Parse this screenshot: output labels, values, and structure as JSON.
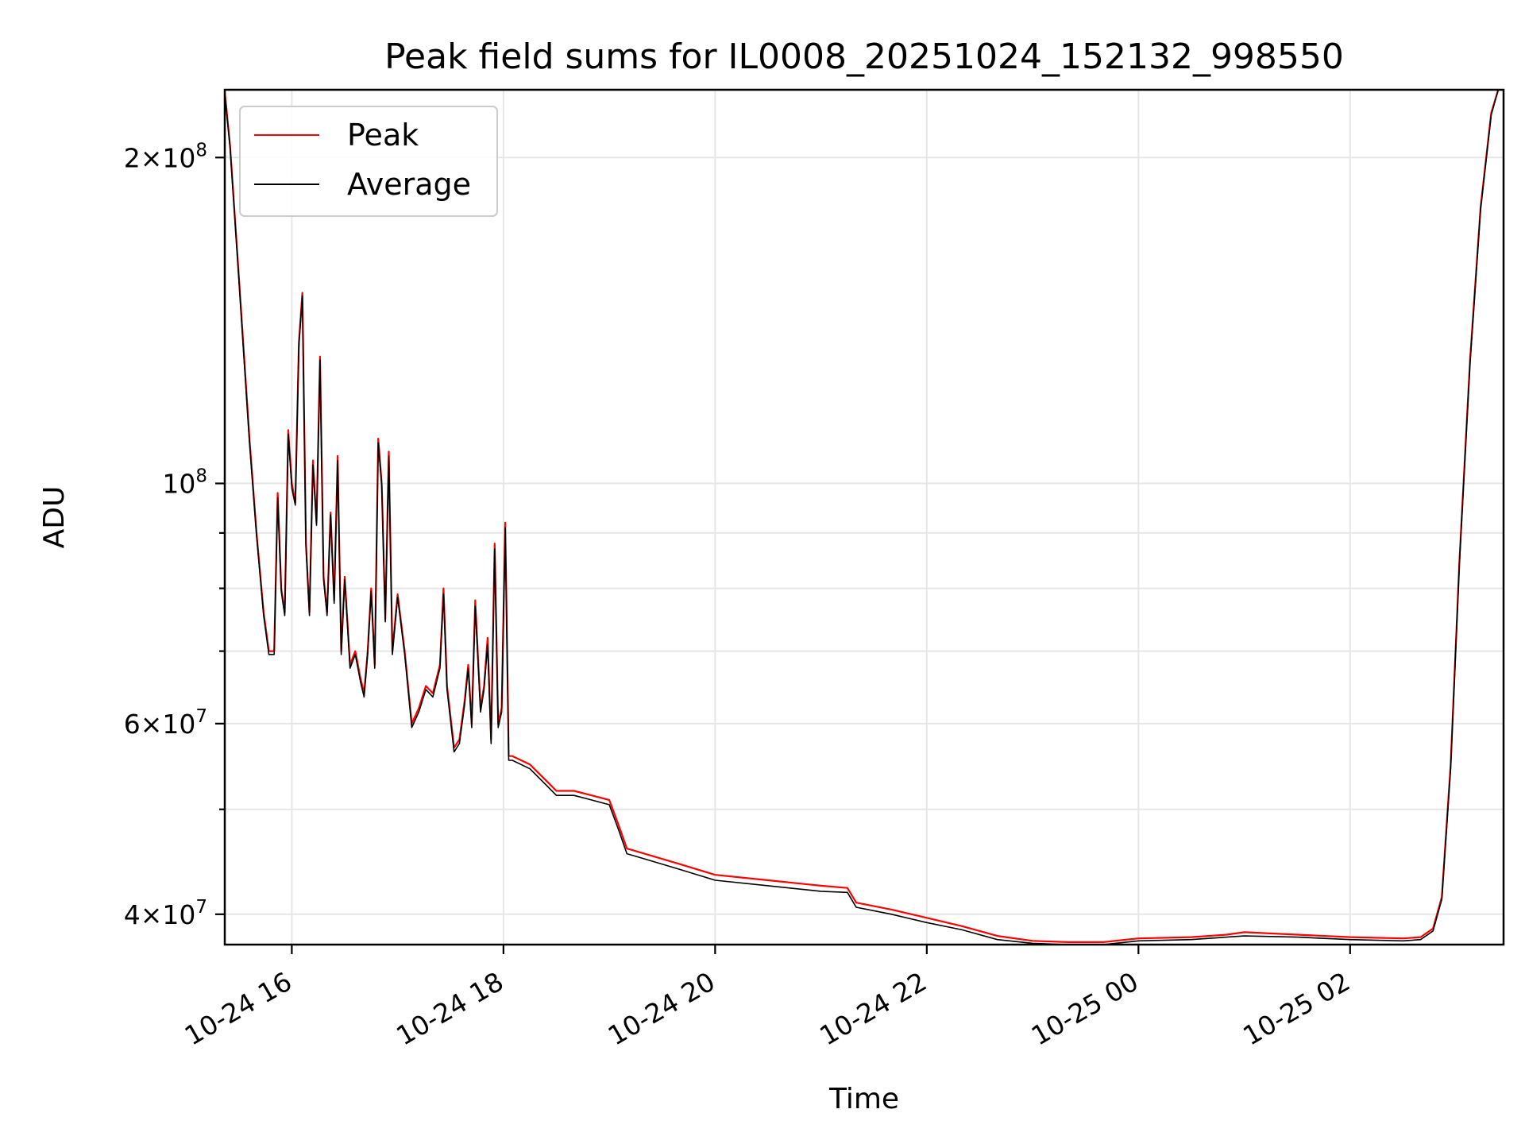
{
  "chart_data": {
    "type": "line",
    "title": "Peak field sums for IL0008_20251024_152132_998550",
    "xlabel": "Time",
    "ylabel": "ADU",
    "yscale": "log",
    "grid": true,
    "legend_position": "top-left",
    "xlim": [
      "2025-10-24 15:22",
      "2025-10-25 03:27"
    ],
    "ylim": [
      37500000,
      231000000
    ],
    "x_ticks": [
      {
        "value": "2025-10-24 16:00",
        "label": "10-24 16"
      },
      {
        "value": "2025-10-24 18:00",
        "label": "10-24 18"
      },
      {
        "value": "2025-10-24 20:00",
        "label": "10-24 20"
      },
      {
        "value": "2025-10-24 22:00",
        "label": "10-24 22"
      },
      {
        "value": "2025-10-25 00:00",
        "label": "10-25 00"
      },
      {
        "value": "2025-10-25 02:00",
        "label": "10-25 02"
      }
    ],
    "y_ticks": [
      {
        "value": 40000000,
        "base": "4",
        "exp": "7"
      },
      {
        "value": 60000000,
        "base": "6",
        "exp": "7"
      },
      {
        "value": 100000000,
        "base": "",
        "exp": "8"
      },
      {
        "value": 200000000,
        "base": "2",
        "exp": "8"
      }
    ],
    "y_minor_ticks": [
      50000000,
      70000000,
      80000000,
      90000000
    ],
    "series": [
      {
        "name": "Peak",
        "color": "#ff0000",
        "x": [
          "2025-10-24 15:22",
          "2025-10-24 15:25",
          "2025-10-24 15:30",
          "2025-10-24 15:36",
          "2025-10-24 15:40",
          "2025-10-24 15:44",
          "2025-10-24 15:47",
          "2025-10-24 15:50",
          "2025-10-24 15:52",
          "2025-10-24 15:54",
          "2025-10-24 15:56",
          "2025-10-24 15:58",
          "2025-10-24 16:00",
          "2025-10-24 16:02",
          "2025-10-24 16:04",
          "2025-10-24 16:06",
          "2025-10-24 16:08",
          "2025-10-24 16:10",
          "2025-10-24 16:12",
          "2025-10-24 16:14",
          "2025-10-24 16:16",
          "2025-10-24 16:18",
          "2025-10-24 16:20",
          "2025-10-24 16:22",
          "2025-10-24 16:24",
          "2025-10-24 16:26",
          "2025-10-24 16:28",
          "2025-10-24 16:30",
          "2025-10-24 16:33",
          "2025-10-24 16:36",
          "2025-10-24 16:39",
          "2025-10-24 16:41",
          "2025-10-24 16:43",
          "2025-10-24 16:45",
          "2025-10-24 16:47",
          "2025-10-24 16:49",
          "2025-10-24 16:51",
          "2025-10-24 16:53",
          "2025-10-24 16:55",
          "2025-10-24 16:57",
          "2025-10-24 17:00",
          "2025-10-24 17:04",
          "2025-10-24 17:08",
          "2025-10-24 17:12",
          "2025-10-24 17:16",
          "2025-10-24 17:20",
          "2025-10-24 17:24",
          "2025-10-24 17:26",
          "2025-10-24 17:28",
          "2025-10-24 17:32",
          "2025-10-24 17:35",
          "2025-10-24 17:38",
          "2025-10-24 17:40",
          "2025-10-24 17:42",
          "2025-10-24 17:44",
          "2025-10-24 17:47",
          "2025-10-24 17:49",
          "2025-10-24 17:51",
          "2025-10-24 17:53",
          "2025-10-24 17:55",
          "2025-10-24 17:57",
          "2025-10-24 17:59",
          "2025-10-24 18:01",
          "2025-10-24 18:03",
          "2025-10-24 18:05",
          "2025-10-24 18:15",
          "2025-10-24 18:25",
          "2025-10-24 18:30",
          "2025-10-24 18:40",
          "2025-10-24 18:50",
          "2025-10-24 19:00",
          "2025-10-24 19:05",
          "2025-10-24 19:10",
          "2025-10-24 19:20",
          "2025-10-24 19:40",
          "2025-10-24 20:00",
          "2025-10-24 20:30",
          "2025-10-24 21:00",
          "2025-10-24 21:15",
          "2025-10-24 21:20",
          "2025-10-24 21:40",
          "2025-10-24 22:00",
          "2025-10-24 22:20",
          "2025-10-24 22:40",
          "2025-10-24 23:00",
          "2025-10-24 23:20",
          "2025-10-24 23:40",
          "2025-10-25 00:00",
          "2025-10-25 00:30",
          "2025-10-25 00:50",
          "2025-10-25 01:00",
          "2025-10-25 01:30",
          "2025-10-25 02:00",
          "2025-10-25 02:30",
          "2025-10-25 02:40",
          "2025-10-25 02:47",
          "2025-10-25 02:52",
          "2025-10-25 02:57",
          "2025-10-25 03:02",
          "2025-10-25 03:08",
          "2025-10-25 03:14",
          "2025-10-25 03:20",
          "2025-10-25 03:24",
          "2025-10-25 03:27"
        ],
        "y": [
          230000000,
          205000000,
          155000000,
          110000000,
          90000000,
          76000000,
          70000000,
          70000000,
          98000000,
          80000000,
          76000000,
          112000000,
          100000000,
          96000000,
          135000000,
          150000000,
          88000000,
          76000000,
          105000000,
          92000000,
          131000000,
          82000000,
          76000000,
          94000000,
          78000000,
          106000000,
          70000000,
          82000000,
          68000000,
          70000000,
          66000000,
          64000000,
          70000000,
          80000000,
          68000000,
          110000000,
          100000000,
          75000000,
          107000000,
          70000000,
          79000000,
          70000000,
          60000000,
          62000000,
          65000000,
          64000000,
          68000000,
          80000000,
          65000000,
          57000000,
          58000000,
          63000000,
          68000000,
          60000000,
          78000000,
          62000000,
          65000000,
          72000000,
          58000000,
          88000000,
          60000000,
          62000000,
          92000000,
          56000000,
          56000000,
          55000000,
          53000000,
          52000000,
          52000000,
          51500000,
          51000000,
          48500000,
          46000000,
          45500000,
          44500000,
          43500000,
          43000000,
          42500000,
          42300000,
          41000000,
          40400000,
          39700000,
          39000000,
          38200000,
          37800000,
          37700000,
          37700000,
          38000000,
          38100000,
          38300000,
          38500000,
          38300000,
          38100000,
          38000000,
          38100000,
          38800000,
          41500000,
          55000000,
          85000000,
          130000000,
          180000000,
          220000000,
          231000000,
          231000000
        ]
      },
      {
        "name": "Average",
        "color": "#000000",
        "x": [
          "2025-10-24 15:22",
          "2025-10-24 15:25",
          "2025-10-24 15:30",
          "2025-10-24 15:36",
          "2025-10-24 15:40",
          "2025-10-24 15:44",
          "2025-10-24 15:47",
          "2025-10-24 15:50",
          "2025-10-24 15:52",
          "2025-10-24 15:54",
          "2025-10-24 15:56",
          "2025-10-24 15:58",
          "2025-10-24 16:00",
          "2025-10-24 16:02",
          "2025-10-24 16:04",
          "2025-10-24 16:06",
          "2025-10-24 16:08",
          "2025-10-24 16:10",
          "2025-10-24 16:12",
          "2025-10-24 16:14",
          "2025-10-24 16:16",
          "2025-10-24 16:18",
          "2025-10-24 16:20",
          "2025-10-24 16:22",
          "2025-10-24 16:24",
          "2025-10-24 16:26",
          "2025-10-24 16:28",
          "2025-10-24 16:30",
          "2025-10-24 16:33",
          "2025-10-24 16:36",
          "2025-10-24 16:39",
          "2025-10-24 16:41",
          "2025-10-24 16:43",
          "2025-10-24 16:45",
          "2025-10-24 16:47",
          "2025-10-24 16:49",
          "2025-10-24 16:51",
          "2025-10-24 16:53",
          "2025-10-24 16:55",
          "2025-10-24 16:57",
          "2025-10-24 17:00",
          "2025-10-24 17:04",
          "2025-10-24 17:08",
          "2025-10-24 17:12",
          "2025-10-24 17:16",
          "2025-10-24 17:20",
          "2025-10-24 17:24",
          "2025-10-24 17:26",
          "2025-10-24 17:28",
          "2025-10-24 17:32",
          "2025-10-24 17:35",
          "2025-10-24 17:38",
          "2025-10-24 17:40",
          "2025-10-24 17:42",
          "2025-10-24 17:44",
          "2025-10-24 17:47",
          "2025-10-24 17:49",
          "2025-10-24 17:51",
          "2025-10-24 17:53",
          "2025-10-24 17:55",
          "2025-10-24 17:57",
          "2025-10-24 17:59",
          "2025-10-24 18:01",
          "2025-10-24 18:03",
          "2025-10-24 18:05",
          "2025-10-24 18:15",
          "2025-10-24 18:25",
          "2025-10-24 18:30",
          "2025-10-24 18:40",
          "2025-10-24 18:50",
          "2025-10-24 19:00",
          "2025-10-24 19:05",
          "2025-10-24 19:10",
          "2025-10-24 19:20",
          "2025-10-24 19:40",
          "2025-10-24 20:00",
          "2025-10-24 20:30",
          "2025-10-24 21:00",
          "2025-10-24 21:15",
          "2025-10-24 21:20",
          "2025-10-24 21:40",
          "2025-10-24 22:00",
          "2025-10-24 22:20",
          "2025-10-24 22:40",
          "2025-10-24 23:00",
          "2025-10-24 23:20",
          "2025-10-24 23:40",
          "2025-10-25 00:00",
          "2025-10-25 00:30",
          "2025-10-25 00:50",
          "2025-10-25 01:00",
          "2025-10-25 01:30",
          "2025-10-25 02:00",
          "2025-10-25 02:30",
          "2025-10-25 02:40",
          "2025-10-25 02:47",
          "2025-10-25 02:52",
          "2025-10-25 02:57",
          "2025-10-25 03:02",
          "2025-10-25 03:08",
          "2025-10-25 03:14",
          "2025-10-25 03:20",
          "2025-10-25 03:24",
          "2025-10-25 03:27"
        ],
        "y": [
          229000000,
          204000000,
          154000000,
          109000000,
          89500000,
          75500000,
          69500000,
          69500000,
          97000000,
          79500000,
          75500000,
          111000000,
          99000000,
          95500000,
          134000000,
          149000000,
          87500000,
          75500000,
          104000000,
          91500000,
          130000000,
          81500000,
          75500000,
          93500000,
          77500000,
          105000000,
          69500000,
          81500000,
          67500000,
          69500000,
          65500000,
          63500000,
          69500000,
          79500000,
          67500000,
          109000000,
          99500000,
          74500000,
          106000000,
          69500000,
          78500000,
          69500000,
          59500000,
          61500000,
          64500000,
          63500000,
          67500000,
          79000000,
          64500000,
          56500000,
          57500000,
          62500000,
          67500000,
          59500000,
          77000000,
          61500000,
          64500000,
          71000000,
          57500000,
          87000000,
          59500000,
          61500000,
          91000000,
          55500000,
          55500000,
          54500000,
          52500000,
          51500000,
          51500000,
          51000000,
          50500000,
          48000000,
          45500000,
          45000000,
          44000000,
          43000000,
          42500000,
          42000000,
          41900000,
          40600000,
          40000000,
          39300000,
          38700000,
          37900000,
          37600000,
          37500000,
          37500000,
          37800000,
          37900000,
          38100000,
          38200000,
          38100000,
          37900000,
          37800000,
          37900000,
          38600000,
          41300000,
          54500000,
          84500000,
          129000000,
          179000000,
          219000000,
          231000000,
          231000000
        ]
      }
    ]
  }
}
